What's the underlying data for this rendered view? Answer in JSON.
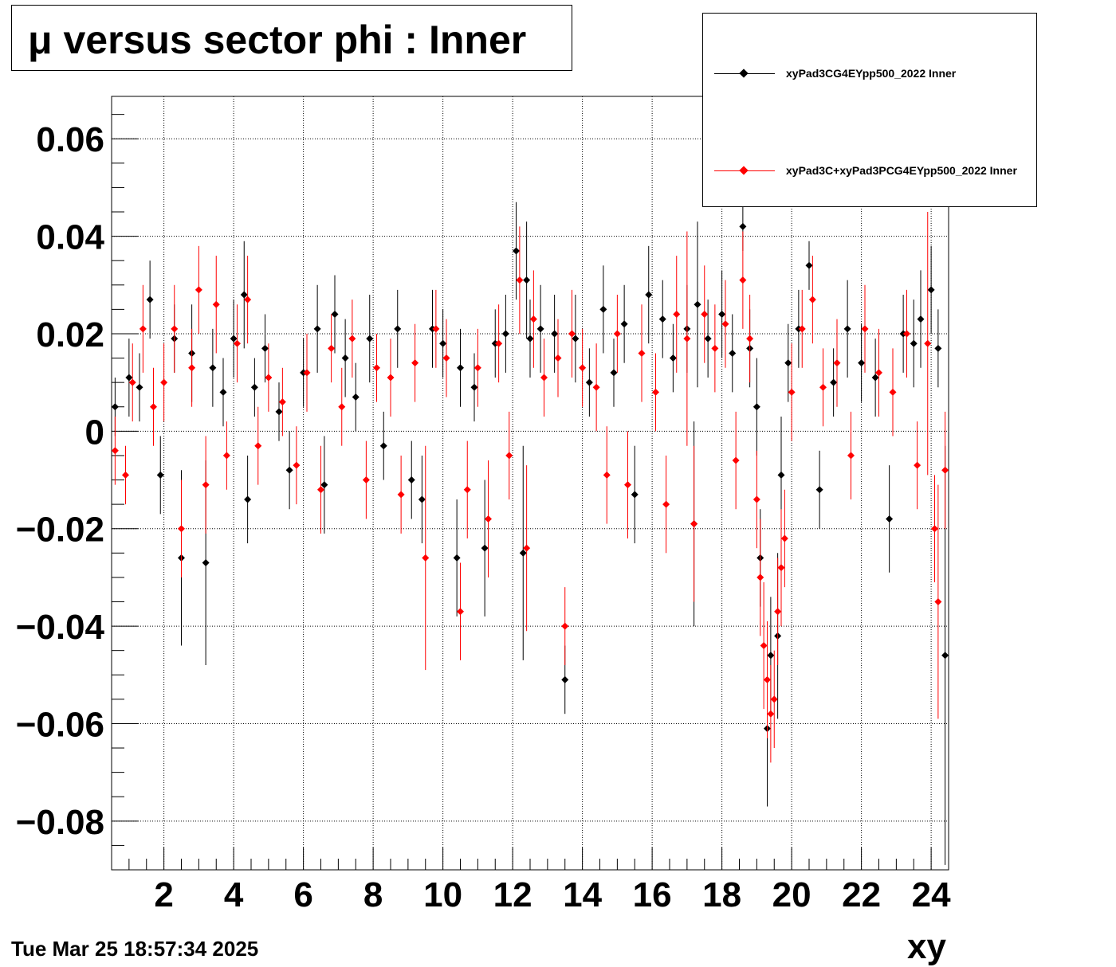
{
  "title": "μ versus sector phi : Inner",
  "timestamp": "Tue Mar 25 18:57:34 2025",
  "chart_data": {
    "type": "scatter",
    "title": "μ versus sector phi : Inner",
    "xlabel": "xy",
    "ylabel": "",
    "xlim": [
      0.5,
      24.5
    ],
    "ylim": [
      -0.09,
      0.0687
    ],
    "xticks": [
      2,
      4,
      6,
      8,
      10,
      12,
      14,
      16,
      18,
      20,
      22,
      24
    ],
    "xtick_labels": [
      "2",
      "4",
      "6",
      "8",
      "10",
      "12",
      "14",
      "16",
      "18",
      "20",
      "22",
      "24"
    ],
    "yticks": [
      -0.08,
      -0.06,
      -0.04,
      -0.02,
      0,
      0.02,
      0.04,
      0.06
    ],
    "ytick_labels": [
      "−0.08",
      "−0.06",
      "−0.04",
      "−0.02",
      "0",
      "0.02",
      "0.04",
      "0.06"
    ],
    "grid": true,
    "legend_position": "top-right",
    "series": [
      {
        "name": "xyPad3CG4EYpp500_2022 Inner",
        "color": "#000000",
        "marker": "diamond",
        "x": [
          0.6,
          1.0,
          1.3,
          1.6,
          1.9,
          2.3,
          2.5,
          2.8,
          3.2,
          3.4,
          3.7,
          4.0,
          4.3,
          4.4,
          4.6,
          4.9,
          5.3,
          5.6,
          6.0,
          6.4,
          6.6,
          6.9,
          7.2,
          7.5,
          7.9,
          8.3,
          8.7,
          9.1,
          9.4,
          9.7,
          10.0,
          10.4,
          10.5,
          10.9,
          11.2,
          11.5,
          11.8,
          12.1,
          12.3,
          12.4,
          12.5,
          12.8,
          13.2,
          13.5,
          13.8,
          14.2,
          14.6,
          14.9,
          15.2,
          15.5,
          15.9,
          16.3,
          16.6,
          17.0,
          17.2,
          17.3,
          17.6,
          18.0,
          18.3,
          18.6,
          18.8,
          19.0,
          19.1,
          19.3,
          19.4,
          19.6,
          19.7,
          19.9,
          20.2,
          20.5,
          20.8,
          21.2,
          21.6,
          22.0,
          22.4,
          22.8,
          23.2,
          23.5,
          23.7,
          24.0,
          24.2,
          24.4
        ],
        "y": [
          0.005,
          0.011,
          0.009,
          0.027,
          -0.009,
          0.019,
          -0.026,
          0.016,
          -0.027,
          0.013,
          0.008,
          0.019,
          0.028,
          -0.014,
          0.009,
          0.017,
          0.004,
          -0.008,
          0.012,
          0.021,
          -0.011,
          0.024,
          0.015,
          0.007,
          0.019,
          -0.003,
          0.021,
          -0.01,
          -0.014,
          0.021,
          0.018,
          -0.026,
          0.013,
          0.009,
          -0.024,
          0.018,
          0.02,
          0.037,
          -0.025,
          0.031,
          0.019,
          0.021,
          0.02,
          -0.051,
          0.019,
          0.01,
          0.025,
          0.012,
          0.022,
          -0.013,
          0.028,
          0.023,
          0.015,
          0.021,
          -0.019,
          0.026,
          0.019,
          0.024,
          0.016,
          0.042,
          0.017,
          0.005,
          -0.026,
          -0.061,
          -0.046,
          -0.042,
          -0.009,
          0.014,
          0.021,
          0.034,
          -0.012,
          0.01,
          0.021,
          0.014,
          0.011,
          -0.018,
          0.02,
          0.018,
          0.023,
          0.029,
          0.017,
          -0.046
        ],
        "yerr": [
          0.006,
          0.008,
          0.007,
          0.008,
          0.008,
          0.007,
          0.018,
          0.01,
          0.021,
          0.008,
          0.007,
          0.008,
          0.011,
          0.009,
          0.006,
          0.007,
          0.006,
          0.008,
          0.007,
          0.009,
          0.01,
          0.008,
          0.008,
          0.007,
          0.009,
          0.007,
          0.008,
          0.008,
          0.009,
          0.008,
          0.007,
          0.012,
          0.008,
          0.007,
          0.014,
          0.007,
          0.008,
          0.01,
          0.022,
          0.012,
          0.008,
          0.009,
          0.008,
          0.007,
          0.009,
          0.007,
          0.009,
          0.007,
          0.008,
          0.01,
          0.01,
          0.008,
          0.007,
          0.009,
          0.021,
          0.017,
          0.008,
          0.009,
          0.008,
          0.005,
          0.008,
          0.01,
          0.01,
          0.016,
          0.012,
          0.017,
          0.012,
          0.008,
          0.008,
          0.005,
          0.008,
          0.007,
          0.01,
          0.008,
          0.008,
          0.011,
          0.008,
          0.009,
          0.01,
          0.009,
          0.008,
          0.043
        ]
      },
      {
        "name": "xyPad3C+xyPad3PCG4EYpp500_2022 Inner",
        "color": "#ff0000",
        "marker": "diamond",
        "x": [
          0.6,
          0.9,
          1.1,
          1.4,
          1.7,
          2.0,
          2.3,
          2.5,
          2.8,
          3.0,
          3.2,
          3.5,
          3.8,
          4.1,
          4.4,
          4.7,
          5.0,
          5.4,
          5.8,
          6.1,
          6.5,
          6.8,
          7.1,
          7.4,
          7.8,
          8.1,
          8.5,
          8.8,
          9.2,
          9.5,
          9.8,
          10.1,
          10.5,
          10.7,
          11.0,
          11.3,
          11.6,
          11.9,
          12.2,
          12.4,
          12.6,
          12.9,
          13.3,
          13.5,
          13.7,
          14.0,
          14.4,
          14.7,
          15.0,
          15.3,
          15.7,
          16.1,
          16.4,
          16.7,
          17.0,
          17.2,
          17.5,
          17.8,
          18.1,
          18.4,
          18.6,
          18.8,
          19.0,
          19.1,
          19.2,
          19.3,
          19.4,
          19.5,
          19.6,
          19.7,
          19.8,
          20.0,
          20.3,
          20.6,
          20.9,
          21.3,
          21.7,
          22.1,
          22.5,
          22.9,
          23.3,
          23.6,
          23.9,
          24.1,
          24.2,
          24.4
        ],
        "y": [
          -0.004,
          -0.009,
          0.01,
          0.021,
          0.005,
          0.01,
          0.021,
          -0.02,
          0.013,
          0.029,
          -0.011,
          0.026,
          -0.005,
          0.018,
          0.027,
          -0.003,
          0.011,
          0.006,
          -0.007,
          0.012,
          -0.012,
          0.017,
          0.005,
          0.019,
          -0.01,
          0.013,
          0.011,
          -0.013,
          0.014,
          -0.026,
          0.021,
          0.015,
          -0.037,
          -0.012,
          0.013,
          -0.018,
          0.018,
          -0.005,
          0.031,
          -0.024,
          0.023,
          0.011,
          0.015,
          -0.04,
          0.02,
          0.013,
          0.009,
          -0.009,
          0.02,
          -0.011,
          0.016,
          0.008,
          -0.015,
          0.024,
          0.019,
          -0.019,
          0.024,
          0.017,
          0.022,
          -0.006,
          0.031,
          0.019,
          -0.014,
          -0.03,
          -0.044,
          -0.051,
          -0.058,
          -0.055,
          -0.037,
          -0.028,
          -0.022,
          0.008,
          0.021,
          0.027,
          0.009,
          0.014,
          -0.005,
          0.021,
          0.012,
          0.008,
          0.02,
          -0.007,
          0.018,
          -0.02,
          -0.035,
          -0.008
        ],
        "yerr": [
          0.007,
          0.006,
          0.008,
          0.009,
          0.008,
          0.008,
          0.009,
          0.01,
          0.008,
          0.009,
          0.01,
          0.01,
          0.007,
          0.008,
          0.009,
          0.008,
          0.007,
          0.007,
          0.008,
          0.008,
          0.009,
          0.007,
          0.008,
          0.008,
          0.008,
          0.007,
          0.008,
          0.008,
          0.008,
          0.023,
          0.008,
          0.008,
          0.01,
          0.01,
          0.008,
          0.012,
          0.008,
          0.009,
          0.011,
          0.017,
          0.01,
          0.008,
          0.008,
          0.008,
          0.009,
          0.008,
          0.009,
          0.01,
          0.008,
          0.011,
          0.01,
          0.008,
          0.01,
          0.012,
          0.022,
          0.016,
          0.01,
          0.009,
          0.009,
          0.01,
          0.01,
          0.009,
          0.01,
          0.012,
          0.013,
          0.012,
          0.01,
          0.01,
          0.011,
          0.012,
          0.01,
          0.01,
          0.008,
          0.009,
          0.008,
          0.009,
          0.009,
          0.009,
          0.009,
          0.009,
          0.009,
          0.009,
          0.027,
          0.011,
          0.024,
          0.012
        ]
      }
    ]
  }
}
